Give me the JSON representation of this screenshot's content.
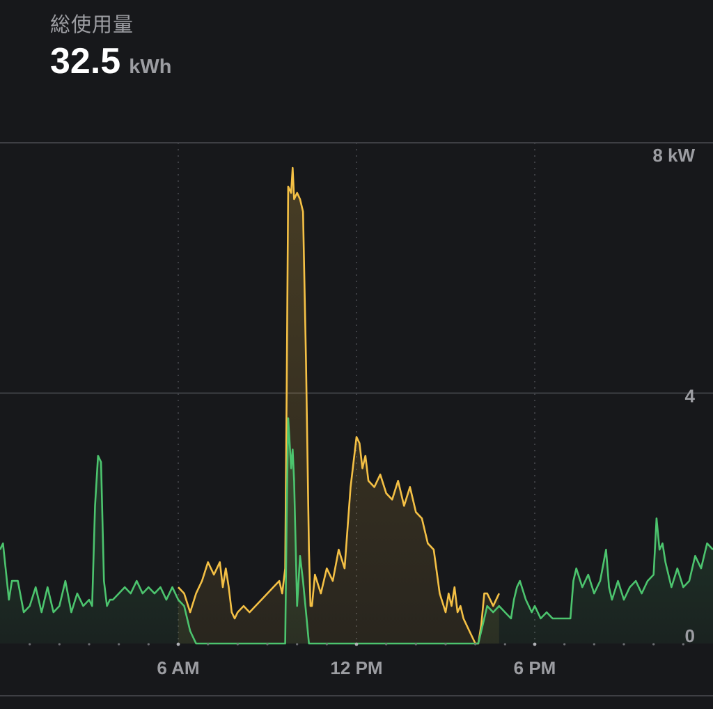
{
  "header": {
    "title": "総使用量",
    "total_value": "32.5",
    "total_unit": "kWh"
  },
  "chart_data": {
    "type": "area",
    "ylim": [
      0,
      8
    ],
    "xlim": [
      0,
      24
    ],
    "y_ticks": [
      {
        "value": 8,
        "label": "8 kW"
      },
      {
        "value": 4,
        "label": "4"
      },
      {
        "value": 0,
        "label": "0"
      }
    ],
    "x_ticks": [
      {
        "value": 6,
        "label": "6 AM"
      },
      {
        "value": 12,
        "label": "12 PM"
      },
      {
        "value": 18,
        "label": "6 PM"
      }
    ],
    "minor_x_ticks": [
      1,
      2,
      3,
      4,
      5,
      7,
      8,
      9,
      10,
      11,
      13,
      14,
      15,
      16,
      17,
      19,
      20,
      21,
      22,
      23
    ],
    "grid": true,
    "colors": {
      "home": "#4cc46e",
      "grid_import": "#f4c045",
      "background": "#17181b",
      "gridline": "#3e3f44"
    },
    "series": [
      {
        "color": "#4cc46e",
        "x": [
          0,
          0.1,
          0.3,
          0.4,
          0.6,
          0.8,
          1.0,
          1.2,
          1.4,
          1.6,
          1.8,
          2.0,
          2.2,
          2.4,
          2.6,
          2.8,
          3.0,
          3.1,
          3.2,
          3.3,
          3.4,
          3.5,
          3.6,
          3.7,
          3.8,
          4.0,
          4.2,
          4.4,
          4.6,
          4.8,
          5.0,
          5.2,
          5.4,
          5.6,
          5.8,
          6.0,
          6.2,
          6.4,
          6.6,
          6.7,
          6.8,
          7.0,
          7.2,
          7.4,
          7.5,
          7.6,
          7.7,
          7.8,
          7.9,
          8.0,
          8.5,
          9.0,
          9.4,
          9.5,
          9.6,
          9.65,
          9.7,
          9.8,
          9.85,
          9.9,
          10.0,
          10.1,
          10.2,
          10.3,
          10.4,
          10.45,
          10.5,
          11.0,
          12.0,
          13.0,
          14.0,
          15.0,
          16.0,
          16.1,
          16.2,
          16.3,
          16.4,
          16.6,
          16.8,
          17.0,
          17.2,
          17.3,
          17.4,
          17.5,
          17.7,
          17.9,
          18.0,
          18.2,
          18.4,
          18.6,
          18.8,
          19.0,
          19.2,
          19.3,
          19.4,
          19.6,
          19.8,
          20.0,
          20.2,
          20.4,
          20.5,
          20.6,
          20.8,
          21.0,
          21.2,
          21.4,
          21.6,
          21.8,
          22.0,
          22.1,
          22.2,
          22.3,
          22.4,
          22.6,
          22.8,
          23.0,
          23.2,
          23.4,
          23.6,
          23.8,
          24.0
        ],
        "y": [
          1.5,
          1.6,
          0.7,
          1.0,
          1.0,
          0.5,
          0.6,
          0.9,
          0.5,
          0.9,
          0.5,
          0.6,
          1.0,
          0.5,
          0.8,
          0.6,
          0.7,
          0.6,
          2.2,
          3.0,
          2.9,
          1.0,
          0.6,
          0.7,
          0.7,
          0.8,
          0.9,
          0.8,
          1.0,
          0.8,
          0.9,
          0.8,
          0.9,
          0.7,
          0.9,
          0.7,
          0.6,
          0.2,
          0.0,
          0.0,
          0.0,
          0.0,
          0.0,
          0.0,
          0.0,
          0.0,
          0.0,
          0.0,
          0.0,
          0.0,
          0.0,
          0.0,
          0.0,
          0.0,
          0.0,
          2.0,
          3.6,
          2.8,
          3.1,
          2.6,
          0.6,
          1.4,
          1.0,
          0.5,
          0.0,
          0.0,
          0.0,
          0.0,
          0.0,
          0.0,
          0.0,
          0.0,
          0.0,
          0.0,
          0.2,
          0.4,
          0.6,
          0.5,
          0.6,
          0.5,
          0.4,
          0.7,
          0.9,
          1.0,
          0.7,
          0.5,
          0.6,
          0.4,
          0.5,
          0.4,
          0.4,
          0.4,
          0.4,
          1.0,
          1.2,
          0.9,
          1.1,
          0.8,
          1.0,
          1.5,
          0.9,
          0.7,
          1.0,
          0.7,
          0.9,
          1.0,
          0.8,
          1.0,
          1.1,
          2.0,
          1.5,
          1.6,
          1.3,
          0.9,
          1.2,
          0.9,
          1.0,
          1.4,
          1.2,
          1.6,
          1.5
        ]
      },
      {
        "color": "#f4c045",
        "x": [
          6.0,
          6.2,
          6.4,
          6.6,
          6.8,
          7.0,
          7.2,
          7.4,
          7.5,
          7.6,
          7.7,
          7.8,
          7.9,
          8.0,
          8.2,
          8.4,
          8.6,
          8.8,
          9.0,
          9.2,
          9.4,
          9.5,
          9.6,
          9.65,
          9.7,
          9.8,
          9.85,
          9.9,
          10.0,
          10.1,
          10.2,
          10.3,
          10.4,
          10.45,
          10.5,
          10.6,
          10.8,
          11.0,
          11.2,
          11.4,
          11.6,
          11.8,
          12.0,
          12.1,
          12.2,
          12.3,
          12.4,
          12.6,
          12.8,
          13.0,
          13.2,
          13.4,
          13.6,
          13.8,
          14.0,
          14.2,
          14.4,
          14.6,
          14.8,
          15.0,
          15.1,
          15.2,
          15.3,
          15.4,
          15.5,
          15.6,
          15.8,
          16.0,
          16.1,
          16.2,
          16.3,
          16.4,
          16.6,
          16.8
        ],
        "y": [
          0.9,
          0.8,
          0.5,
          0.8,
          1.0,
          1.3,
          1.1,
          1.3,
          0.9,
          1.2,
          0.9,
          0.5,
          0.4,
          0.5,
          0.6,
          0.5,
          0.6,
          0.7,
          0.8,
          0.9,
          1.0,
          0.8,
          1.2,
          4.0,
          7.3,
          7.2,
          7.6,
          7.1,
          7.2,
          7.1,
          6.9,
          4.5,
          1.5,
          0.6,
          0.6,
          1.1,
          0.8,
          1.2,
          1.0,
          1.5,
          1.2,
          2.5,
          3.3,
          3.2,
          2.8,
          3.0,
          2.6,
          2.5,
          2.7,
          2.4,
          2.3,
          2.6,
          2.2,
          2.5,
          2.1,
          2.0,
          1.6,
          1.5,
          0.8,
          0.5,
          0.8,
          0.6,
          0.9,
          0.5,
          0.6,
          0.4,
          0.2,
          0.0,
          0.0,
          0.3,
          0.8,
          0.8,
          0.6,
          0.8
        ]
      }
    ]
  }
}
